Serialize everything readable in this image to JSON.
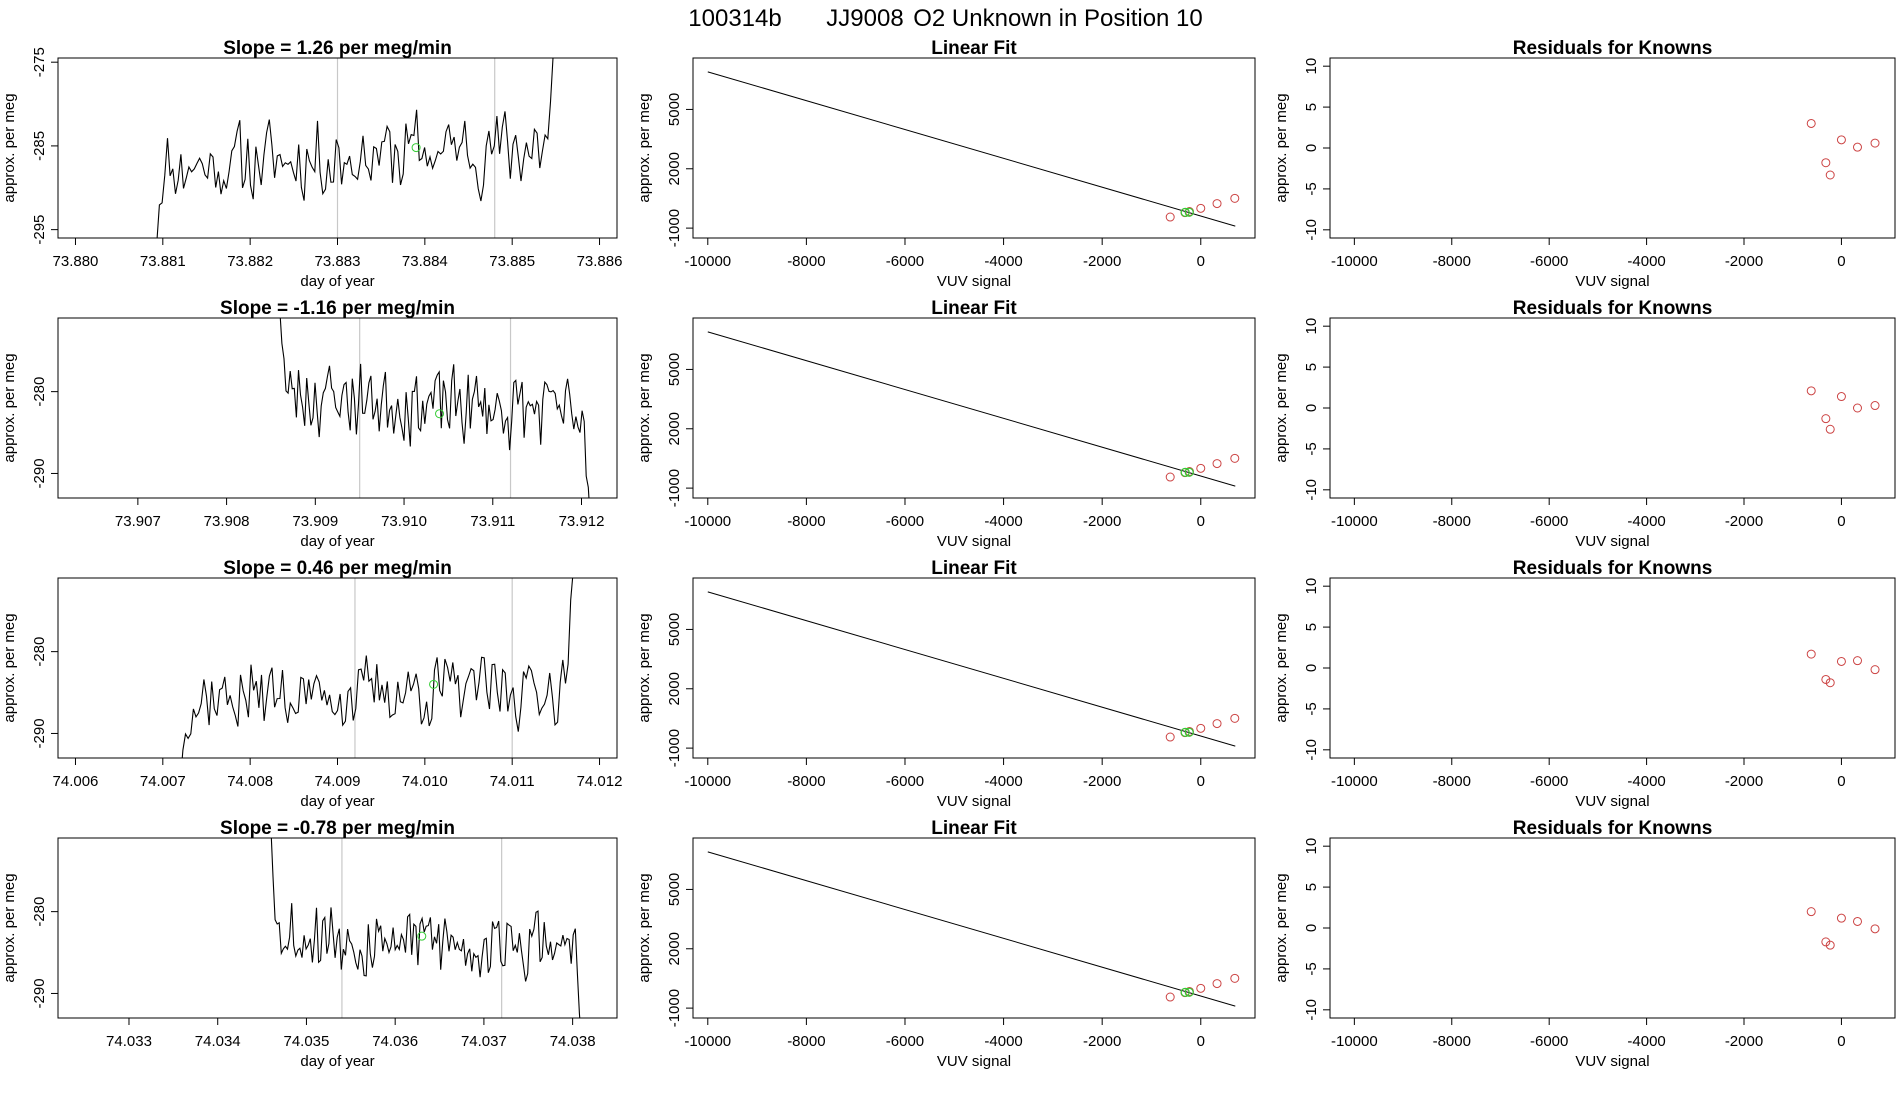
{
  "figure": {
    "title_id": "100314b",
    "title_tank": "JJ9008",
    "title_desc": "O2 Unknown in Position  10"
  },
  "colors": {
    "trace": "#000000",
    "marker_unknown": "#33cc33",
    "marker_known": "#cc4444",
    "vline": "#c8c8c8",
    "frame": "#000000"
  },
  "chart_data": [
    {
      "type": "line",
      "row": 0,
      "panel": "time-series",
      "title": "Slope =  1.26  per meg/min",
      "xlabel": "day of year",
      "ylabel": "approx. per meg",
      "xlim": [
        73.8798,
        73.8862
      ],
      "ylim": [
        -296,
        -274.5
      ],
      "xticks": [
        "73.880",
        "73.881",
        "73.882",
        "73.883",
        "73.884",
        "73.885",
        "73.886"
      ],
      "xtick_values": [
        73.88,
        73.881,
        73.882,
        73.883,
        73.884,
        73.885,
        73.886
      ],
      "yticks": [
        "-275",
        "-285",
        "-295"
      ],
      "ytick_values": [
        -275,
        -285,
        -295
      ],
      "seed": 11,
      "x_start": 73.8809,
      "x_end": 73.8855,
      "mean": -286.2,
      "amplitude": 3.6,
      "drift": 2.8,
      "start_level": -300,
      "end_level": -270,
      "vlines": [
        73.883,
        73.8848
      ],
      "marker": {
        "x": 73.8839,
        "y": -285.2
      }
    },
    {
      "type": "line",
      "row": 1,
      "panel": "time-series",
      "title": "Slope =  -1.16  per meg/min",
      "xlabel": "day of year",
      "ylabel": "approx. per meg",
      "xlim": [
        73.9061,
        73.9124
      ],
      "ylim": [
        -293,
        -271
      ],
      "xticks": [
        "73.907",
        "73.908",
        "73.909",
        "73.910",
        "73.911",
        "73.912"
      ],
      "xtick_values": [
        73.907,
        73.908,
        73.909,
        73.91,
        73.911,
        73.912
      ],
      "yticks": [
        "-280",
        "-290"
      ],
      "ytick_values": [
        -280,
        -290
      ],
      "seed": 23,
      "x_start": 73.9086,
      "x_end": 73.9121,
      "mean": -281.5,
      "amplitude": 3.4,
      "drift": -2.6,
      "start_level": -270,
      "end_level": -296,
      "vlines": [
        73.9095,
        73.9112
      ],
      "marker": {
        "x": 73.9104,
        "y": -282.7
      }
    },
    {
      "type": "line",
      "row": 2,
      "panel": "time-series",
      "title": "Slope =  0.46  per meg/min",
      "xlabel": "day of year",
      "ylabel": "approx. per meg",
      "xlim": [
        74.0058,
        74.0122
      ],
      "ylim": [
        -293,
        -271
      ],
      "xticks": [
        "74.006",
        "74.007",
        "74.008",
        "74.009",
        "74.010",
        "74.011",
        "74.012"
      ],
      "xtick_values": [
        74.006,
        74.007,
        74.008,
        74.009,
        74.01,
        74.011,
        74.012
      ],
      "yticks": [
        "-280",
        "-290"
      ],
      "ytick_values": [
        -280,
        -290
      ],
      "seed": 37,
      "x_start": 74.0072,
      "x_end": 74.0117,
      "mean": -285.0,
      "amplitude": 3.2,
      "drift": 1.2,
      "start_level": -296,
      "end_level": -270,
      "vlines": [
        74.0092,
        74.011
      ],
      "marker": {
        "x": 74.0101,
        "y": -284.0
      }
    },
    {
      "type": "line",
      "row": 3,
      "panel": "time-series",
      "title": "Slope =  -0.78  per meg/min",
      "xlabel": "day of year",
      "ylabel": "approx. per meg",
      "xlim": [
        74.0322,
        74.0385
      ],
      "ylim": [
        -293,
        -271
      ],
      "xticks": [
        "74.033",
        "74.034",
        "74.035",
        "74.036",
        "74.037",
        "74.038"
      ],
      "xtick_values": [
        74.033,
        74.034,
        74.035,
        74.036,
        74.037,
        74.038
      ],
      "yticks": [
        "-280",
        "-290"
      ],
      "ytick_values": [
        -280,
        -290
      ],
      "seed": 53,
      "x_start": 74.0346,
      "x_end": 74.0381,
      "mean": -283.5,
      "amplitude": 3.4,
      "drift": -2.2,
      "start_level": -270,
      "end_level": -296,
      "vlines": [
        74.0354,
        74.0372
      ],
      "marker": {
        "x": 74.0363,
        "y": -283.0
      }
    },
    {
      "type": "scatter",
      "panel": "linear-fit",
      "rows": [
        0,
        1,
        2,
        3
      ],
      "title": "Linear Fit",
      "xlabel": "VUV signal",
      "ylabel": "approx. per meg",
      "xlim": [
        -10300,
        1100
      ],
      "ylim": [
        -1500,
        7600
      ],
      "xticks": [
        "-10000",
        "-8000",
        "-6000",
        "-4000",
        "-2000",
        "0"
      ],
      "xtick_values": [
        -10000,
        -8000,
        -6000,
        -4000,
        -2000,
        0
      ],
      "yticks": [
        "-1000",
        "2000",
        "5000"
      ],
      "ytick_values": [
        -1000,
        2000,
        5000
      ],
      "fit_line": {
        "x": [
          -10000,
          700
        ],
        "y": [
          6900,
          -900
        ]
      },
      "knowns": {
        "x": [
          -620,
          -320,
          -230,
          0,
          330,
          690
        ],
        "y": [
          -440,
          -220,
          -160,
          0,
          241,
          504
        ]
      },
      "unknown": {
        "x": [
          -275
        ],
        "y": [
          -201
        ]
      }
    },
    {
      "type": "scatter",
      "panel": "residuals",
      "row": 0,
      "title": "Residuals for Knowns",
      "xlabel": "VUV signal",
      "ylabel": "approx. per meg",
      "xlim": [
        -10500,
        1100
      ],
      "ylim": [
        -11,
        11
      ],
      "xticks": [
        "-10000",
        "-8000",
        "-6000",
        "-4000",
        "-2000",
        "0"
      ],
      "xtick_values": [
        -10000,
        -8000,
        -6000,
        -4000,
        -2000,
        0
      ],
      "yticks": [
        "-10",
        "-5",
        "0",
        "5",
        "10"
      ],
      "ytick_values": [
        -10,
        -5,
        0,
        5,
        10
      ],
      "x": [
        -620,
        -320,
        -230,
        0,
        330,
        690
      ],
      "y": [
        3.0,
        -1.8,
        -3.3,
        1.0,
        0.1,
        0.6
      ]
    },
    {
      "type": "scatter",
      "panel": "residuals",
      "row": 1,
      "title": "Residuals for Knowns",
      "xlabel": "VUV signal",
      "ylabel": "approx. per meg",
      "xlim": [
        -10500,
        1100
      ],
      "ylim": [
        -11,
        11
      ],
      "xticks": [
        "-10000",
        "-8000",
        "-6000",
        "-4000",
        "-2000",
        "0"
      ],
      "xtick_values": [
        -10000,
        -8000,
        -6000,
        -4000,
        -2000,
        0
      ],
      "yticks": [
        "-10",
        "-5",
        "0",
        "5",
        "10"
      ],
      "ytick_values": [
        -10,
        -5,
        0,
        5,
        10
      ],
      "x": [
        -620,
        -320,
        -230,
        0,
        330,
        690
      ],
      "y": [
        2.1,
        -1.3,
        -2.6,
        1.4,
        0.0,
        0.3
      ]
    },
    {
      "type": "scatter",
      "panel": "residuals",
      "row": 2,
      "title": "Residuals for Knowns",
      "xlabel": "VUV signal",
      "ylabel": "approx. per meg",
      "xlim": [
        -10500,
        1100
      ],
      "ylim": [
        -11,
        11
      ],
      "xticks": [
        "-10000",
        "-8000",
        "-6000",
        "-4000",
        "-2000",
        "0"
      ],
      "xtick_values": [
        -10000,
        -8000,
        -6000,
        -4000,
        -2000,
        0
      ],
      "yticks": [
        "-10",
        "-5",
        "0",
        "5",
        "10"
      ],
      "ytick_values": [
        -10,
        -5,
        0,
        5,
        10
      ],
      "x": [
        -620,
        -320,
        -230,
        0,
        330,
        690
      ],
      "y": [
        1.7,
        -1.4,
        -1.8,
        0.8,
        0.9,
        -0.2
      ]
    },
    {
      "type": "scatter",
      "panel": "residuals",
      "row": 3,
      "title": "Residuals for Knowns",
      "xlabel": "VUV signal",
      "ylabel": "approx. per meg",
      "xlim": [
        -10500,
        1100
      ],
      "ylim": [
        -11,
        11
      ],
      "xticks": [
        "-10000",
        "-8000",
        "-6000",
        "-4000",
        "-2000",
        "0"
      ],
      "xtick_values": [
        -10000,
        -8000,
        -6000,
        -4000,
        -2000,
        0
      ],
      "yticks": [
        "-10",
        "-5",
        "0",
        "5",
        "10"
      ],
      "ytick_values": [
        -10,
        -5,
        0,
        5,
        10
      ],
      "x": [
        -620,
        -320,
        -230,
        0,
        330,
        690
      ],
      "y": [
        2.0,
        -1.7,
        -2.1,
        1.2,
        0.8,
        -0.1
      ]
    }
  ]
}
